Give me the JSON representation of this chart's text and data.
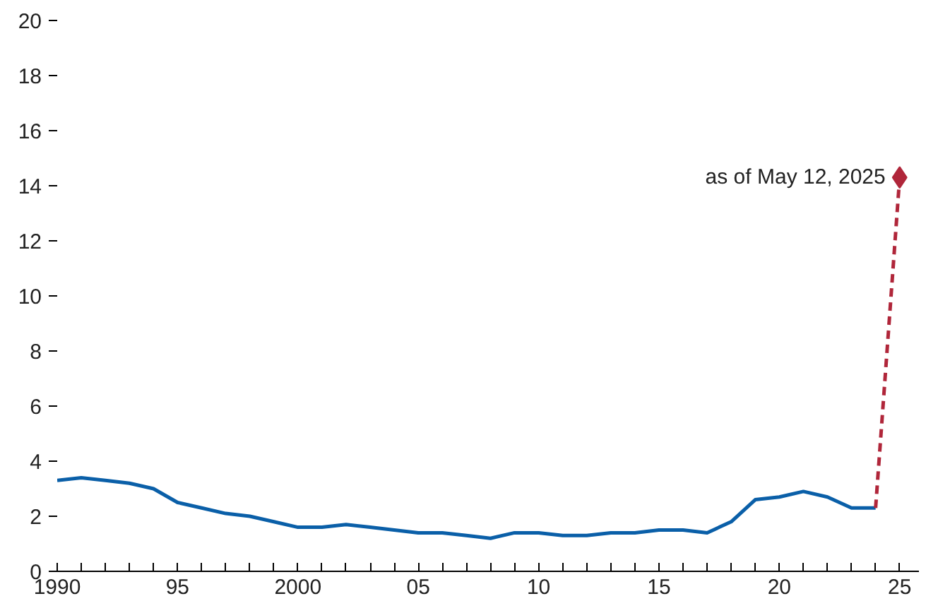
{
  "chart_data": {
    "type": "line",
    "x": [
      1990,
      1991,
      1992,
      1993,
      1994,
      1995,
      1996,
      1997,
      1998,
      1999,
      2000,
      2001,
      2002,
      2003,
      2004,
      2005,
      2006,
      2007,
      2008,
      2009,
      2010,
      2011,
      2012,
      2013,
      2014,
      2015,
      2016,
      2017,
      2018,
      2019,
      2020,
      2021,
      2022,
      2023,
      2024
    ],
    "series": [
      {
        "color": "#0a5fa8",
        "line_style": "solid",
        "values": [
          3.3,
          3.4,
          3.3,
          3.2,
          3.0,
          2.5,
          2.3,
          2.1,
          2.0,
          1.8,
          1.6,
          1.6,
          1.7,
          1.6,
          1.5,
          1.4,
          1.4,
          1.3,
          1.2,
          1.4,
          1.4,
          1.3,
          1.3,
          1.4,
          1.4,
          1.5,
          1.5,
          1.4,
          1.8,
          2.6,
          2.7,
          2.9,
          2.7,
          2.3,
          2.3
        ]
      },
      {
        "color": "#b0263a",
        "line_style": "dashed",
        "marker": "diamond",
        "x": [
          2024,
          2025
        ],
        "values": [
          2.3,
          14.3
        ]
      }
    ],
    "annotations": [
      {
        "text": "as of May 12, 2025",
        "x": 2025,
        "y": 14.3
      }
    ],
    "xlim": [
      1990,
      2025.8
    ],
    "ylim": [
      0,
      20
    ],
    "xticks": [
      1990,
      {
        "value": 1991,
        "label": null
      },
      {
        "value": 1992,
        "label": null
      },
      {
        "value": 1993,
        "label": null
      },
      {
        "value": 1994,
        "label": null
      },
      {
        "value": 1995,
        "label": "95"
      },
      {
        "value": 1996,
        "label": null
      },
      {
        "value": 1997,
        "label": null
      },
      {
        "value": 1998,
        "label": null
      },
      {
        "value": 1999,
        "label": null
      },
      2000,
      {
        "value": 2001,
        "label": null
      },
      {
        "value": 2002,
        "label": null
      },
      {
        "value": 2003,
        "label": null
      },
      {
        "value": 2004,
        "label": null
      },
      {
        "value": 2005,
        "label": "05"
      },
      {
        "value": 2006,
        "label": null
      },
      {
        "value": 2007,
        "label": null
      },
      {
        "value": 2008,
        "label": null
      },
      {
        "value": 2009,
        "label": null
      },
      {
        "value": 2010,
        "label": "10"
      },
      {
        "value": 2011,
        "label": null
      },
      {
        "value": 2012,
        "label": null
      },
      {
        "value": 2013,
        "label": null
      },
      {
        "value": 2014,
        "label": null
      },
      {
        "value": 2015,
        "label": "15"
      },
      {
        "value": 2016,
        "label": null
      },
      {
        "value": 2017,
        "label": null
      },
      {
        "value": 2018,
        "label": null
      },
      {
        "value": 2019,
        "label": null
      },
      {
        "value": 2020,
        "label": "20"
      },
      {
        "value": 2021,
        "label": null
      },
      {
        "value": 2022,
        "label": null
      },
      {
        "value": 2023,
        "label": null
      },
      {
        "value": 2024,
        "label": null
      },
      {
        "value": 2025,
        "label": "25"
      }
    ],
    "yticks": [
      0,
      2,
      4,
      6,
      8,
      10,
      12,
      14,
      16,
      18,
      20
    ],
    "grid": false
  }
}
